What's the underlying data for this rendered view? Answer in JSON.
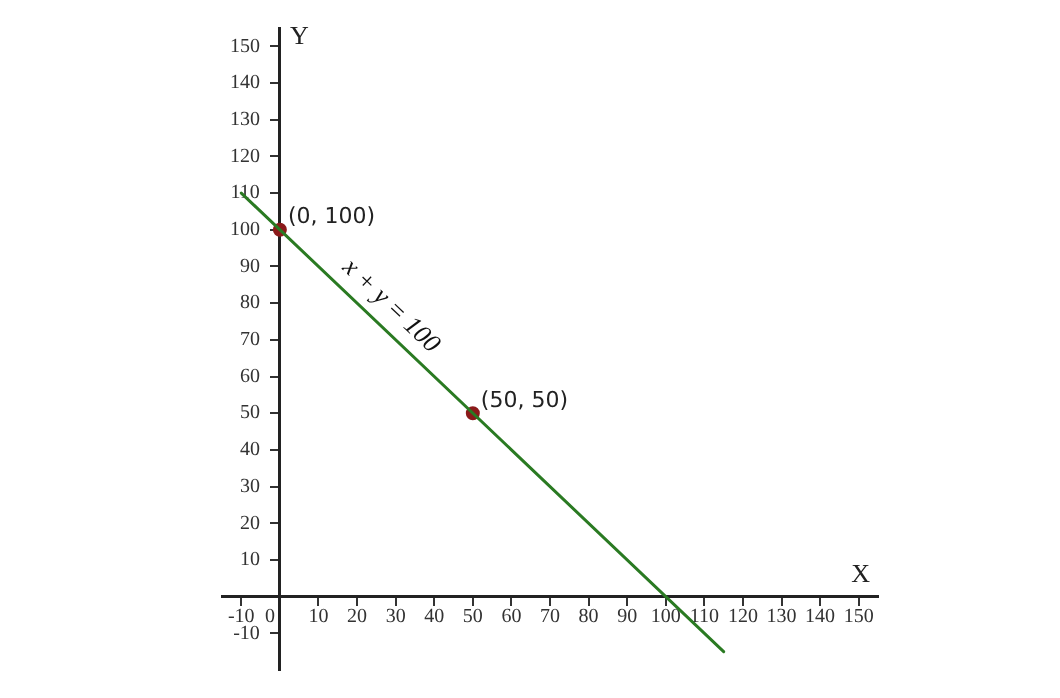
{
  "chart_data": {
    "type": "line",
    "xlabel": "X",
    "ylabel": "Y",
    "xlim": [
      -15,
      155
    ],
    "ylim": [
      -20,
      155
    ],
    "xticks": [
      -10,
      0,
      10,
      20,
      30,
      40,
      50,
      60,
      70,
      80,
      90,
      100,
      110,
      120,
      130,
      140,
      150
    ],
    "yticks": [
      -10,
      10,
      20,
      30,
      40,
      50,
      60,
      70,
      80,
      90,
      100,
      110,
      120,
      130,
      140,
      150
    ],
    "grid": false,
    "legend": false,
    "series": [
      {
        "type": "line",
        "name": "x + y = 100",
        "color": "#2a7a22",
        "x": [
          -10,
          115
        ],
        "values": [
          110,
          -15
        ],
        "marker": "none",
        "line_style": "solid"
      },
      {
        "type": "scatter",
        "color": "#8b1a1a",
        "x": [
          0,
          50
        ],
        "values": [
          100,
          50
        ],
        "marker": "circle"
      }
    ],
    "annotations": [
      {
        "text": "(0, 100)",
        "x": 0,
        "y": 100
      },
      {
        "text": "(50, 50)",
        "x": 50,
        "y": 50
      }
    ]
  }
}
